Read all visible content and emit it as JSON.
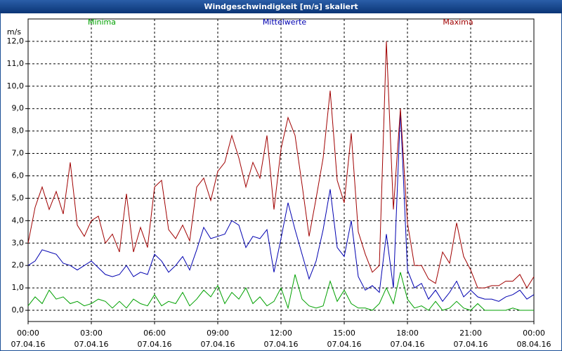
{
  "chart_data": {
    "type": "line",
    "title": "Windgeschwindigkeit [m/s] skaliert",
    "y_label": "m/s",
    "x": [
      0,
      20,
      40,
      60,
      80,
      100,
      120,
      140,
      160,
      180,
      200,
      220,
      240,
      260,
      280,
      300,
      320,
      340,
      360,
      380,
      400,
      420,
      440,
      460,
      480,
      500,
      520,
      540,
      560,
      580,
      600,
      620,
      640,
      660,
      680,
      700,
      720,
      740,
      760,
      780,
      800,
      820,
      840,
      860,
      880,
      900,
      920,
      940,
      960,
      980,
      1000,
      1020,
      1040,
      1060,
      1080,
      1100,
      1120,
      1140,
      1160,
      1180,
      1200,
      1220,
      1240,
      1260,
      1280,
      1300,
      1320,
      1340,
      1360,
      1380,
      1400,
      1420,
      1440
    ],
    "series": [
      {
        "name": "Minima",
        "color": "#00a000",
        "values": [
          0.2,
          0.6,
          0.3,
          0.9,
          0.5,
          0.6,
          0.3,
          0.4,
          0.2,
          0.3,
          0.5,
          0.4,
          0.1,
          0.4,
          0.1,
          0.5,
          0.3,
          0.2,
          0.7,
          0.2,
          0.4,
          0.3,
          0.8,
          0.2,
          0.5,
          0.9,
          0.6,
          1.1,
          0.3,
          0.8,
          0.5,
          1.0,
          0.3,
          0.6,
          0.2,
          0.4,
          1.0,
          0.1,
          1.6,
          0.5,
          0.2,
          0.1,
          0.2,
          1.3,
          0.4,
          0.9,
          0.3,
          0.1,
          0.1,
          0.0,
          0.3,
          1.0,
          0.3,
          1.7,
          0.5,
          0.1,
          0.2,
          0.0,
          0.4,
          0.0,
          0.1,
          0.4,
          0.1,
          0.0,
          0.3,
          0.0,
          0.0,
          0.0,
          0.0,
          0.1,
          0.0,
          0.0,
          0.0
        ]
      },
      {
        "name": "Mittelwerte",
        "color": "#0000b0",
        "values": [
          2.0,
          2.2,
          2.7,
          2.6,
          2.5,
          2.1,
          2.0,
          1.8,
          2.0,
          2.2,
          1.9,
          1.6,
          1.5,
          1.6,
          2.0,
          1.5,
          1.7,
          1.6,
          2.5,
          2.2,
          1.7,
          2.0,
          2.4,
          1.8,
          2.7,
          3.7,
          3.2,
          3.3,
          3.4,
          4.0,
          3.8,
          2.8,
          3.3,
          3.2,
          3.6,
          1.7,
          3.2,
          4.8,
          3.6,
          2.5,
          1.4,
          2.2,
          3.6,
          5.4,
          2.8,
          2.4,
          4.0,
          1.5,
          0.9,
          1.1,
          0.8,
          3.4,
          1.0,
          8.9,
          1.8,
          1.0,
          1.2,
          0.5,
          0.9,
          0.4,
          0.8,
          1.3,
          0.6,
          0.9,
          0.6,
          0.5,
          0.5,
          0.4,
          0.6,
          0.7,
          0.9,
          0.5,
          0.7
        ]
      },
      {
        "name": "Maxima",
        "color": "#a00000",
        "values": [
          3.0,
          4.6,
          5.5,
          4.5,
          5.3,
          4.3,
          6.6,
          3.8,
          3.3,
          4.0,
          4.2,
          3.0,
          3.4,
          2.6,
          5.2,
          2.6,
          3.7,
          2.8,
          5.5,
          5.8,
          3.6,
          3.2,
          3.8,
          3.1,
          5.5,
          5.9,
          4.9,
          6.2,
          6.6,
          7.8,
          6.8,
          5.5,
          6.6,
          5.9,
          7.8,
          4.5,
          7.2,
          8.6,
          7.8,
          5.6,
          3.3,
          5.0,
          6.8,
          9.8,
          5.8,
          4.8,
          7.9,
          3.5,
          2.5,
          1.7,
          2.0,
          12.0,
          4.5,
          9.0,
          3.9,
          2.0,
          2.0,
          1.4,
          1.2,
          2.6,
          2.1,
          3.9,
          2.4,
          1.8,
          1.0,
          1.0,
          1.1,
          1.1,
          1.3,
          1.3,
          1.6,
          1.0,
          1.5
        ]
      }
    ],
    "xlim": [
      0,
      1440
    ],
    "xticks": [
      {
        "value": 0,
        "label": "00:00"
      },
      {
        "value": 180,
        "label": "03:00"
      },
      {
        "value": 360,
        "label": "06:00"
      },
      {
        "value": 540,
        "label": "09:00"
      },
      {
        "value": 720,
        "label": "12:00"
      },
      {
        "value": 900,
        "label": "15:00"
      },
      {
        "value": 1080,
        "label": "18:00"
      },
      {
        "value": 1260,
        "label": "21:00"
      },
      {
        "value": 1440,
        "label": "00:00"
      }
    ],
    "xtick_dates": [
      "07.04.16",
      "07.04.16",
      "07.04.16",
      "07.04.16",
      "07.04.16",
      "07.04.16",
      "07.04.16",
      "07.04.16",
      "08.04.16"
    ],
    "ylim": [
      -0.5,
      13
    ],
    "yticks": [
      {
        "value": 0,
        "label": "0,0"
      },
      {
        "value": 1,
        "label": "1,0"
      },
      {
        "value": 2,
        "label": "2,0"
      },
      {
        "value": 3,
        "label": "3,0"
      },
      {
        "value": 4,
        "label": "4,0"
      },
      {
        "value": 5,
        "label": "5,0"
      },
      {
        "value": 6,
        "label": "6,0"
      },
      {
        "value": 7,
        "label": "7,0"
      },
      {
        "value": 8,
        "label": "8,0"
      },
      {
        "value": 9,
        "label": "9,0"
      },
      {
        "value": 10,
        "label": "10,0"
      },
      {
        "value": 11,
        "label": "11,0"
      },
      {
        "value": 12,
        "label": "12,0"
      }
    ],
    "grid": true
  }
}
